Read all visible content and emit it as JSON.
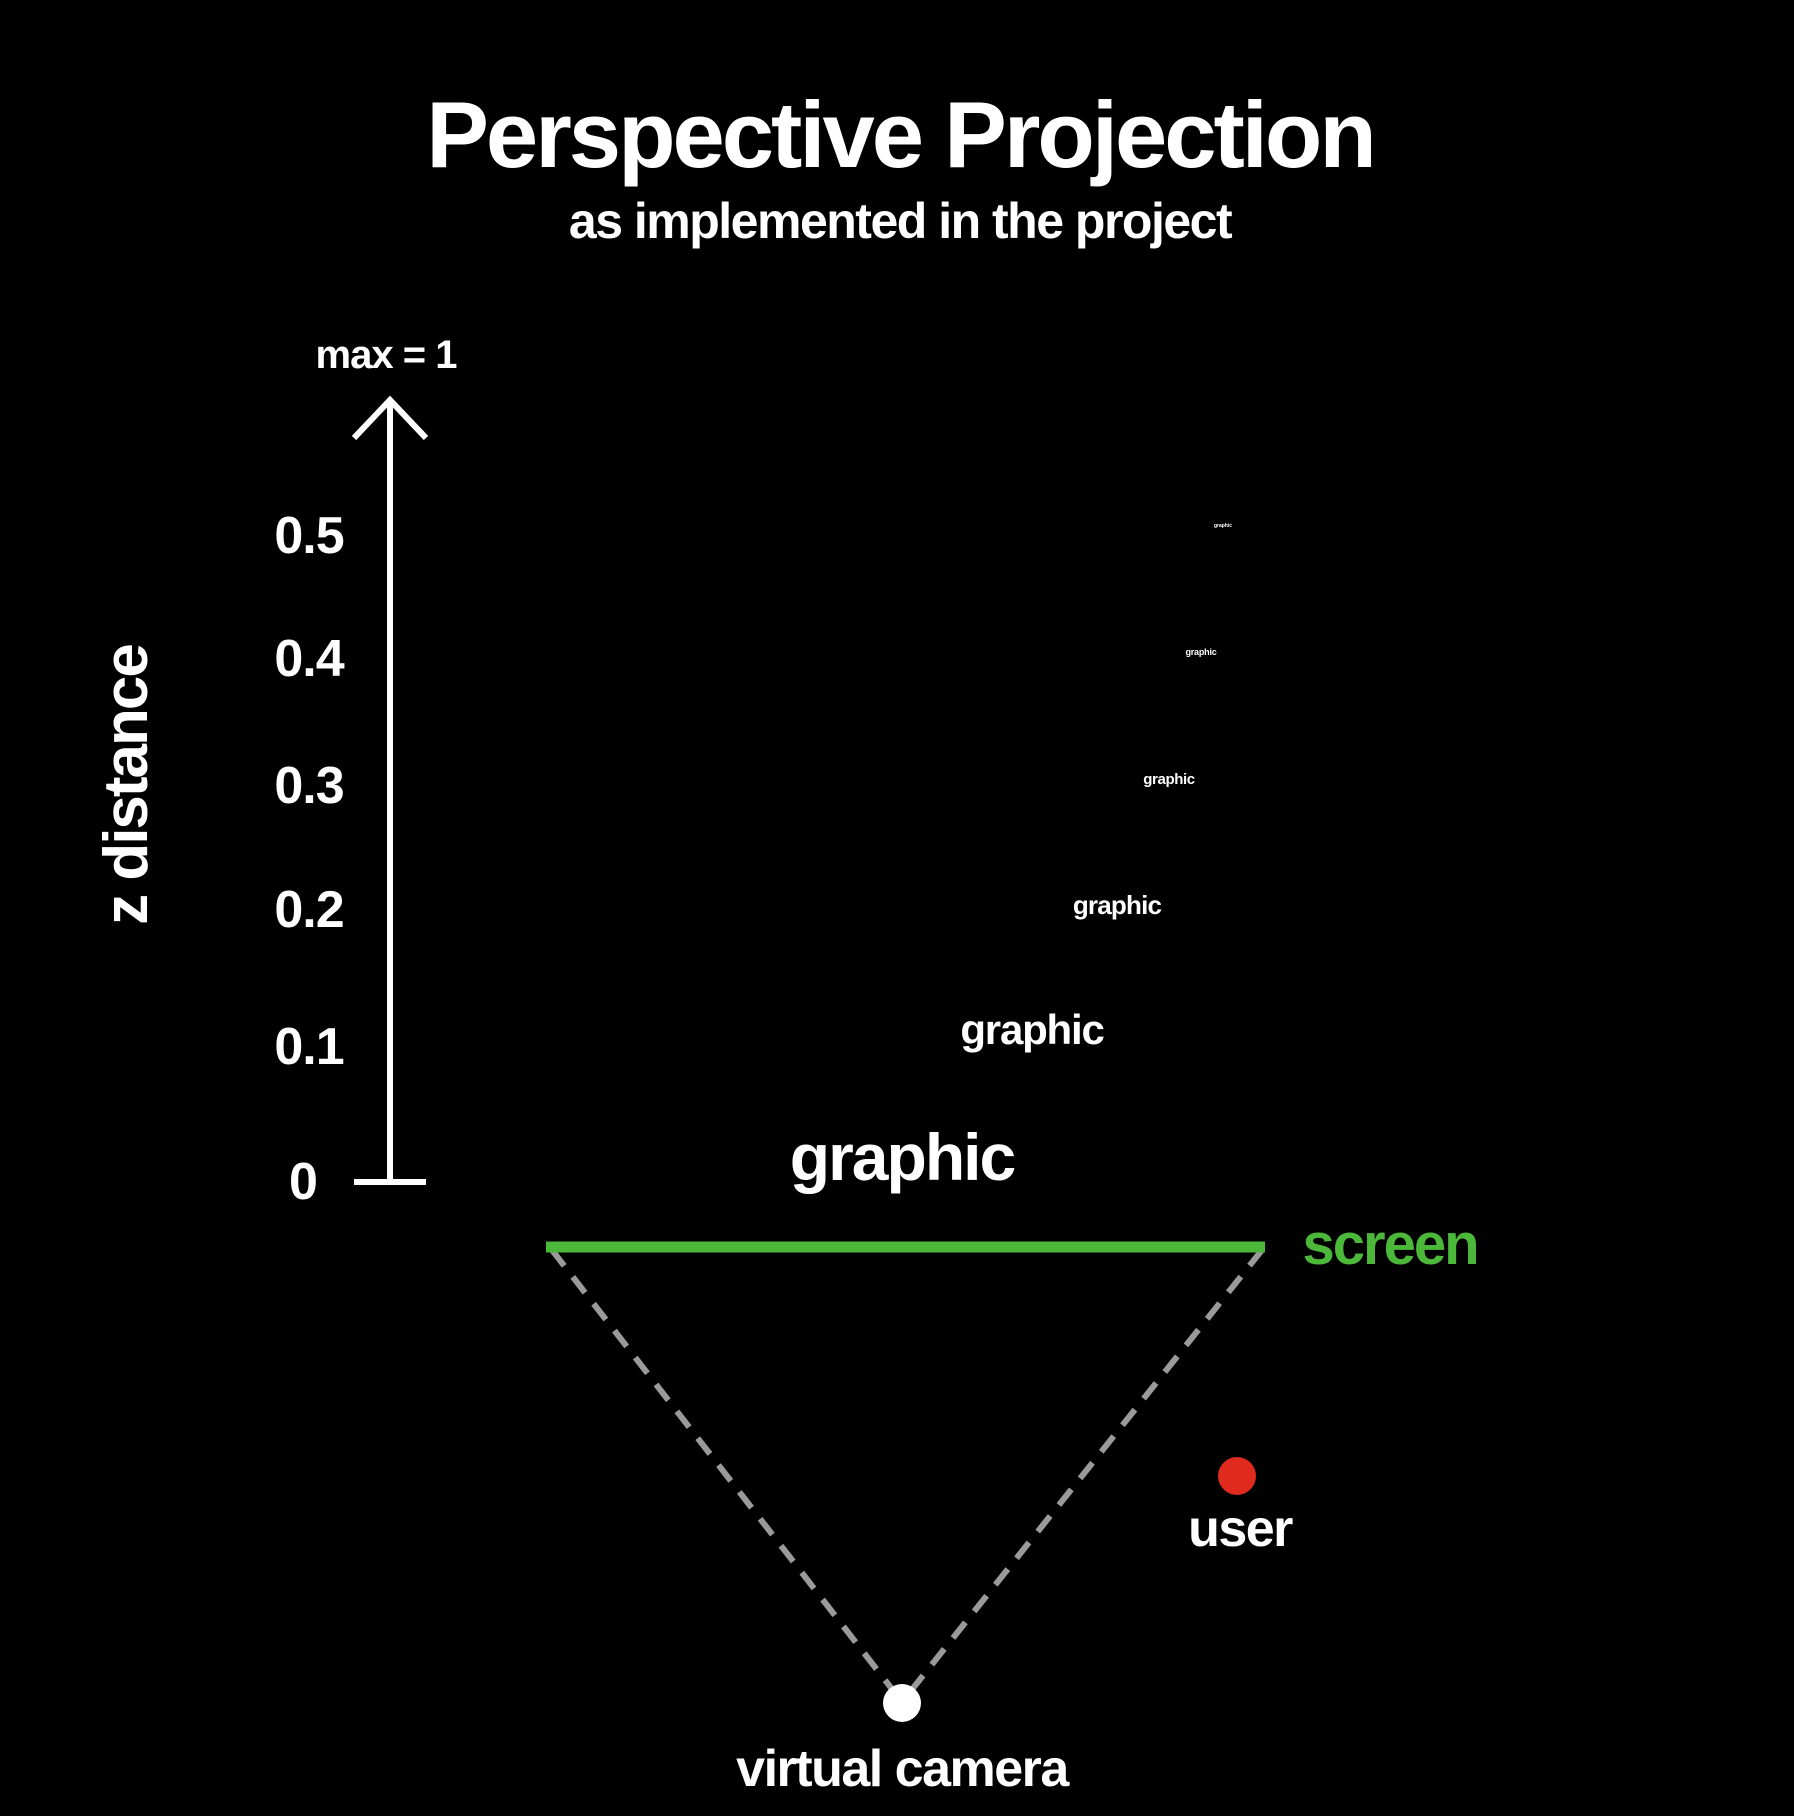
{
  "title": "Perspective Projection",
  "subtitle": "as implemented in the project",
  "axis": {
    "label": "z distance",
    "max_label": "max = 1",
    "ticks": [
      "0",
      "0.1",
      "0.2",
      "0.3",
      "0.4",
      "0.5"
    ]
  },
  "graphics": [
    {
      "z": 0,
      "text": "graphic"
    },
    {
      "z": 0.1,
      "text": "graphic"
    },
    {
      "z": 0.2,
      "text": "graphic"
    },
    {
      "z": 0.3,
      "text": "graphic"
    },
    {
      "z": 0.4,
      "text": "graphic"
    },
    {
      "z": 0.5,
      "text": "graphic"
    }
  ],
  "screen": {
    "label": "screen"
  },
  "user": {
    "label": "user"
  },
  "camera": {
    "label": "virtual camera"
  },
  "colors": {
    "background": "#000000",
    "foreground": "#ffffff",
    "screen": "#4cb83a",
    "user": "#e02a1e",
    "frustum": "#9a9a9a"
  }
}
